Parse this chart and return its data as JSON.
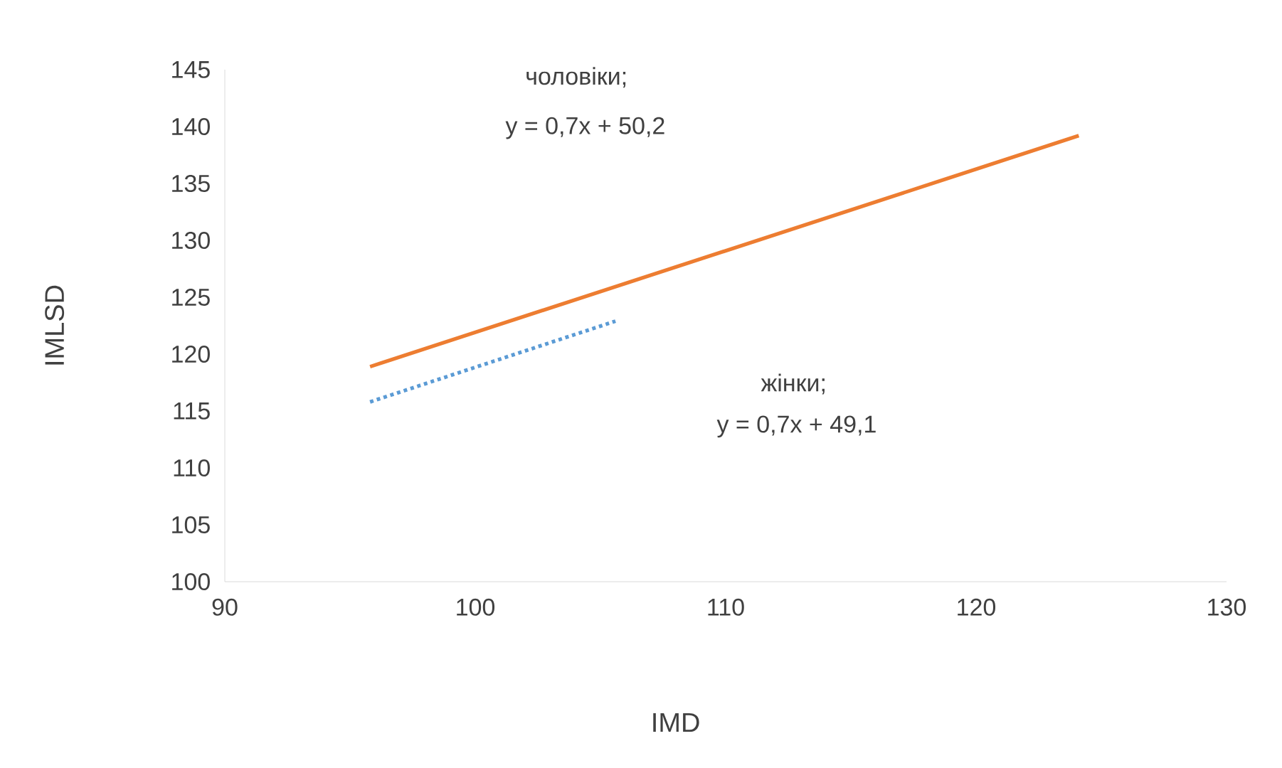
{
  "chart_data": {
    "type": "line",
    "xlabel": "IMD",
    "ylabel": "IMLSD",
    "xlim": [
      90,
      130
    ],
    "xticks": [
      90,
      100,
      110,
      120,
      130
    ],
    "ylim": [
      100,
      145
    ],
    "yticks": [
      100,
      105,
      110,
      115,
      120,
      125,
      130,
      135,
      140,
      145
    ],
    "series": [
      {
        "color": "#ed7d31",
        "line_style": "solid",
        "x": [
          95.8,
          124.1
        ],
        "values": [
          118.9,
          139.2
        ]
      },
      {
        "color": "#5b9bd5",
        "line_style": "dotted",
        "x": [
          95.8,
          105.6
        ],
        "values": [
          115.8,
          122.9
        ]
      }
    ],
    "annotations": [
      "чоловіки;",
      "y = 0,7x + 50,2",
      "жінки;",
      "y = 0,7x + 49,1"
    ]
  }
}
